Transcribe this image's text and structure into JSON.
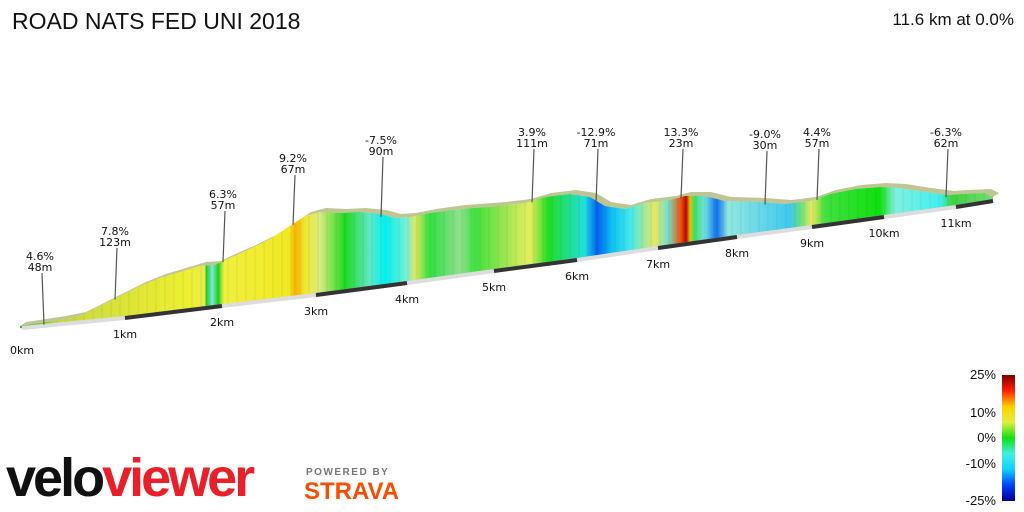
{
  "title": "ROAD NATS FED UNI 2018",
  "summary": "11.6 km at 0.0%",
  "chart_data": {
    "type": "area",
    "title": "ROAD NATS FED UNI 2018",
    "x_unit": "km",
    "xlim": [
      0,
      11.6
    ],
    "x_ticks": [
      "0km",
      "1km",
      "2km",
      "3km",
      "4km",
      "5km",
      "6km",
      "7km",
      "8km",
      "9km",
      "10km",
      "11km"
    ],
    "climb_annotations": [
      {
        "km": 0.2,
        "grade": "4.6%",
        "length": "48m"
      },
      {
        "km": 0.9,
        "grade": "7.8%",
        "length": "123m"
      },
      {
        "km": 2.0,
        "grade": "6.3%",
        "length": "57m"
      },
      {
        "km": 2.85,
        "grade": "9.2%",
        "length": "67m"
      },
      {
        "km": 3.75,
        "grade": "-7.5%",
        "length": "90m"
      },
      {
        "km": 5.5,
        "grade": "3.9%",
        "length": "111m"
      },
      {
        "km": 6.25,
        "grade": "-12.9%",
        "length": "71m"
      },
      {
        "km": 7.25,
        "grade": "13.3%",
        "length": "23m"
      },
      {
        "km": 8.4,
        "grade": "-9.0%",
        "length": "30m"
      },
      {
        "km": 8.9,
        "grade": "4.4%",
        "length": "57m"
      },
      {
        "km": 10.8,
        "grade": "-6.3%",
        "length": "62m"
      }
    ],
    "legend": {
      "ticks": [
        "25%",
        "10%",
        "0%",
        "-10%",
        "-25%"
      ],
      "colors": [
        "#7a0000",
        "#ff2000",
        "#ffd000",
        "#e0f040",
        "#10e010",
        "#40f0e0",
        "#10d0ff",
        "#0040ff",
        "#000090"
      ]
    }
  },
  "branding": {
    "logo_part1": "velo",
    "logo_part2": "viewer",
    "powered_by": "POWERED BY",
    "strava": "STRAVA"
  }
}
